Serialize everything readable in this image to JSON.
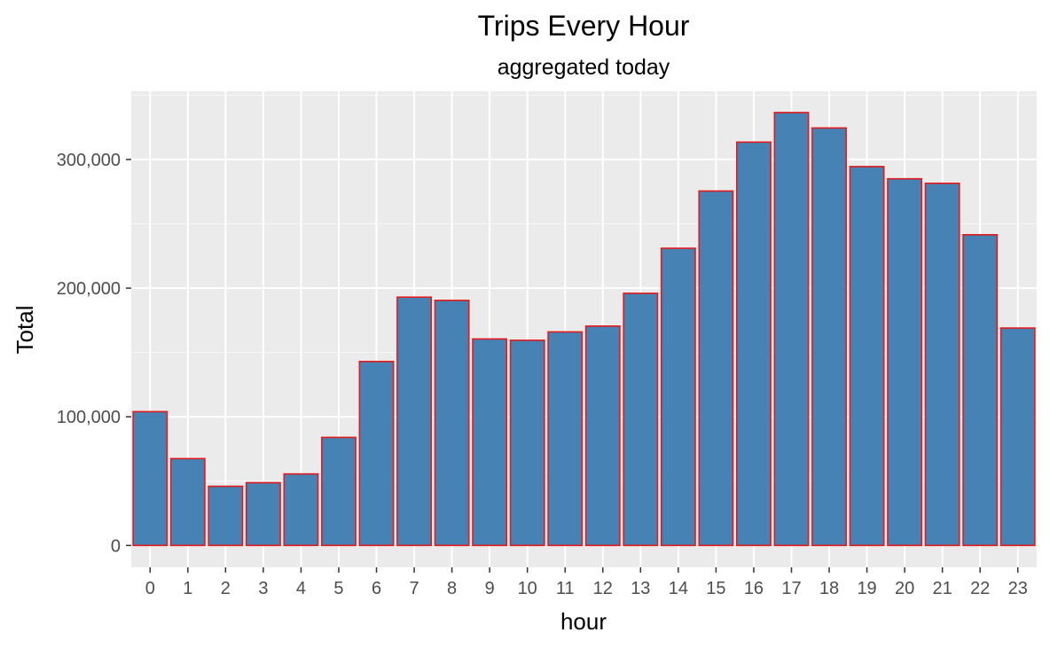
{
  "chart_data": {
    "type": "bar",
    "title": "Trips Every Hour",
    "subtitle": "aggregated today",
    "xlabel": "hour",
    "ylabel": "Total",
    "categories": [
      "0",
      "1",
      "2",
      "3",
      "4",
      "5",
      "6",
      "7",
      "8",
      "9",
      "10",
      "11",
      "12",
      "13",
      "14",
      "15",
      "16",
      "17",
      "18",
      "19",
      "20",
      "21",
      "22",
      "23"
    ],
    "values": [
      104000,
      67500,
      46000,
      48800,
      55600,
      84000,
      143000,
      193000,
      190500,
      160500,
      159500,
      166000,
      170500,
      196000,
      231000,
      275500,
      313500,
      336500,
      324500,
      294500,
      285000,
      281500,
      241500,
      169000
    ],
    "yticks": [
      0,
      100000,
      200000,
      300000
    ],
    "ytick_labels": [
      "0",
      "100,000",
      "200,000",
      "300,000"
    ],
    "ylim": [
      -17000,
      353000
    ],
    "grid": true,
    "colors": {
      "panel_background": "#ebebeb",
      "grid": "#ffffff",
      "bar_fill": "#4682b4",
      "bar_outline": "#e41a1c"
    }
  }
}
